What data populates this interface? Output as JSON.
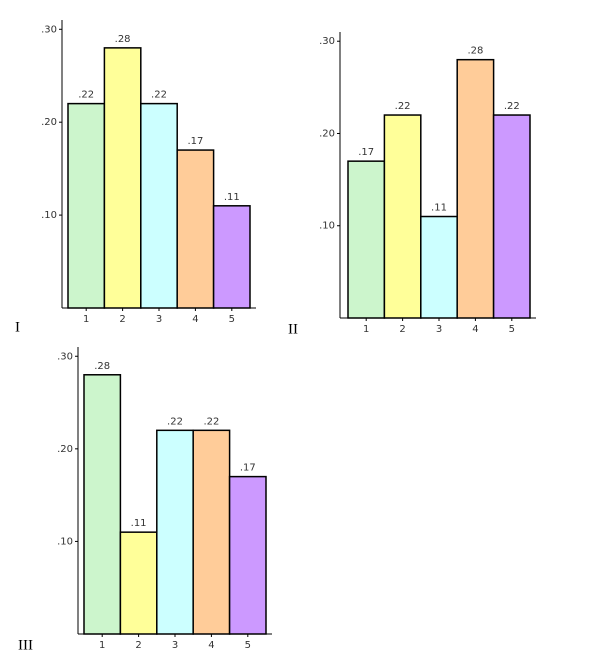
{
  "chart_data": [
    {
      "type": "bar",
      "label": "I",
      "categories": [
        "1",
        "2",
        "3",
        "4",
        "5"
      ],
      "values": [
        0.22,
        0.28,
        0.22,
        0.17,
        0.11
      ],
      "value_labels": [
        ".22",
        ".28",
        ".22",
        ".17",
        ".11"
      ],
      "colors": [
        "#ccf5cc",
        "#ffff99",
        "#ccffff",
        "#ffcc99",
        "#cc99ff"
      ],
      "ylim": [
        0,
        0.31
      ],
      "yticks": [
        {
          "value": 0.1,
          "label": ".10"
        },
        {
          "value": 0.2,
          "label": ".20"
        },
        {
          "value": 0.3,
          "label": ".30"
        }
      ]
    },
    {
      "type": "bar",
      "label": "II",
      "categories": [
        "1",
        "2",
        "3",
        "4",
        "5"
      ],
      "values": [
        0.17,
        0.22,
        0.11,
        0.28,
        0.22
      ],
      "value_labels": [
        ".17",
        ".22",
        ".11",
        ".28",
        ".22"
      ],
      "colors": [
        "#ccf5cc",
        "#ffff99",
        "#ccffff",
        "#ffcc99",
        "#cc99ff"
      ],
      "ylim": [
        0,
        0.31
      ],
      "yticks": [
        {
          "value": 0.1,
          "label": ".10"
        },
        {
          "value": 0.2,
          "label": ".20"
        },
        {
          "value": 0.3,
          "label": ".30"
        }
      ]
    },
    {
      "type": "bar",
      "label": "III",
      "categories": [
        "1",
        "2",
        "3",
        "4",
        "5"
      ],
      "values": [
        0.28,
        0.11,
        0.22,
        0.22,
        0.17
      ],
      "value_labels": [
        ".28",
        ".11",
        ".22",
        ".22",
        ".17"
      ],
      "colors": [
        "#ccf5cc",
        "#ffff99",
        "#ccffff",
        "#ffcc99",
        "#cc99ff"
      ],
      "ylim": [
        0,
        0.31
      ],
      "yticks": [
        {
          "value": 0.1,
          "label": ".10"
        },
        {
          "value": 0.2,
          "label": ".20"
        },
        {
          "value": 0.3,
          "label": ".30"
        }
      ]
    }
  ]
}
